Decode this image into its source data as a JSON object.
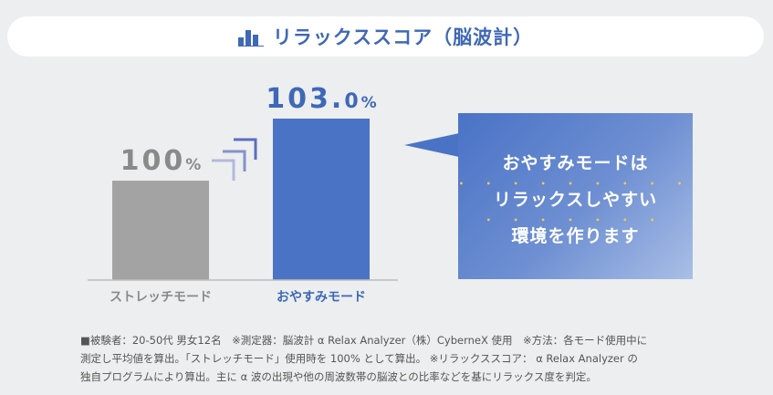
{
  "title": "リラックススコア（脳波計）",
  "icon": "bar-chart-icon",
  "colors": {
    "accent": "#3f68b6",
    "bar_blue": "#4a73c6",
    "bar_gray": "#a3a3a3",
    "dots": "#f4c94e"
  },
  "chart_data": {
    "type": "bar",
    "title": "リラックススコア（脳波計）",
    "categories": [
      "ストレッチモード",
      "おやすみモード"
    ],
    "values": [
      100,
      103.0
    ],
    "value_labels": [
      {
        "number": "100",
        "unit": "%"
      },
      {
        "number": "103.",
        "decimal": "0",
        "unit": "%"
      }
    ],
    "unit": "%",
    "xlabel": "",
    "ylabel": "",
    "grid": false,
    "legend": "none",
    "category_colors": [
      "#a3a3a3",
      "#4a73c6"
    ],
    "label_colors": [
      "#8a8a8a",
      "#3f68b6"
    ]
  },
  "callout": {
    "lines": [
      "おやすみモードは",
      "リラックスしやすい",
      "環境を作ります"
    ],
    "dots": [
      "",
      "• • • • • • • • •",
      "• • • • • • •"
    ]
  },
  "footnote": [
    "■被験者：20-50代 男女12名　※測定器：脳波計 α Relax Analyzer（株）CyberneX 使用　※方法：各モード使用中に",
    "測定し平均値を算出。「ストレッチモード」使用時を 100% として算出。 ※リラックススコア： α Relax Analyzer の",
    "独自プログラムにより算出。主に α 波の出現や他の周波数帯の脳波との比率などを基にリラックス度を判定。"
  ]
}
